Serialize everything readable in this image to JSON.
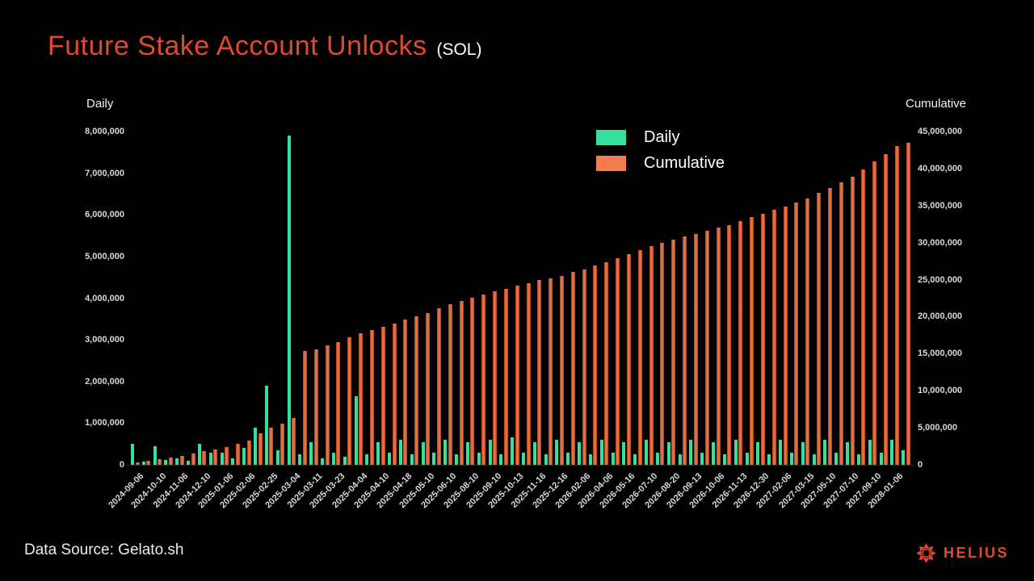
{
  "title": "Future Stake Account Unlocks",
  "title_suffix": "(SOL)",
  "colors": {
    "background": "#000000",
    "accent": "#e0492b",
    "daily_green": "#33e19b",
    "cumulative_orange": "#f47c4e",
    "cumulative_edge": "#b0451f",
    "tick_text": "#d9d9d9"
  },
  "legend": {
    "daily": {
      "label": "Daily",
      "color": "#33e19b"
    },
    "cumulative": {
      "label": "Cumulative",
      "color": "#f47c4e"
    }
  },
  "footer": {
    "source": "Data Source: Gelato.sh",
    "brand": "HELIUS"
  },
  "chart_data": {
    "type": "bar",
    "title": "Future Stake Account Unlocks (SOL)",
    "grid": false,
    "legend_position": "top-center",
    "left_axis": {
      "label": "Daily",
      "range": [
        0,
        8000000
      ],
      "ticks": [
        "8,000,000",
        "7,000,000",
        "6,000,000",
        "5,000,000",
        "4,000,000",
        "3,000,000",
        "2,000,000",
        "1,000,000",
        "0"
      ]
    },
    "right_axis": {
      "label": "Cumulative",
      "range": [
        0,
        45000000
      ],
      "ticks": [
        "45,000,000",
        "40,000,000",
        "35,000,000",
        "30,000,000",
        "25,000,000",
        "20,000,000",
        "15,000,000",
        "10,000,000",
        "5,000,000",
        "0"
      ]
    },
    "series": [
      {
        "name": "Daily",
        "axis": "left",
        "color": "#33e19b"
      },
      {
        "name": "Cumulative",
        "axis": "right",
        "color": "#f47c4e"
      }
    ],
    "points": [
      {
        "label": "2024-09-06",
        "daily": 500000,
        "cumulative": 300000
      },
      {
        "label": "",
        "daily": 80000,
        "cumulative": 600000
      },
      {
        "label": "2024-10-10",
        "daily": 450000,
        "cumulative": 800000
      },
      {
        "label": "",
        "daily": 120000,
        "cumulative": 1000000
      },
      {
        "label": "2024-11-06",
        "daily": 150000,
        "cumulative": 1200000
      },
      {
        "label": "",
        "daily": 100000,
        "cumulative": 1500000
      },
      {
        "label": "2024-12-10",
        "daily": 500000,
        "cumulative": 1800000
      },
      {
        "label": "",
        "daily": 300000,
        "cumulative": 2100000
      },
      {
        "label": "2025-01-06",
        "daily": 300000,
        "cumulative": 2400000
      },
      {
        "label": "",
        "daily": 150000,
        "cumulative": 2800000
      },
      {
        "label": "2025-02-06",
        "daily": 400000,
        "cumulative": 3300000
      },
      {
        "label": "",
        "daily": 900000,
        "cumulative": 4200000
      },
      {
        "label": "2025-02-25",
        "daily": 1900000,
        "cumulative": 5000000
      },
      {
        "label": "",
        "daily": 350000,
        "cumulative": 5600000
      },
      {
        "label": "2025-03-04",
        "daily": 7900000,
        "cumulative": 6300000
      },
      {
        "label": "",
        "daily": 250000,
        "cumulative": 15400000
      },
      {
        "label": "2025-03-11",
        "daily": 550000,
        "cumulative": 15600000
      },
      {
        "label": "",
        "daily": 150000,
        "cumulative": 16100000
      },
      {
        "label": "2025-03-23",
        "daily": 300000,
        "cumulative": 16600000
      },
      {
        "label": "",
        "daily": 200000,
        "cumulative": 17200000
      },
      {
        "label": "2025-04-04",
        "daily": 1650000,
        "cumulative": 17800000
      },
      {
        "label": "",
        "daily": 250000,
        "cumulative": 18200000
      },
      {
        "label": "2025-04-10",
        "daily": 550000,
        "cumulative": 18600000
      },
      {
        "label": "",
        "daily": 300000,
        "cumulative": 19100000
      },
      {
        "label": "2025-04-18",
        "daily": 600000,
        "cumulative": 19600000
      },
      {
        "label": "",
        "daily": 250000,
        "cumulative": 20000000
      },
      {
        "label": "2025-05-10",
        "daily": 550000,
        "cumulative": 20500000
      },
      {
        "label": "",
        "daily": 300000,
        "cumulative": 21100000
      },
      {
        "label": "2025-06-10",
        "daily": 600000,
        "cumulative": 21700000
      },
      {
        "label": "",
        "daily": 250000,
        "cumulative": 22100000
      },
      {
        "label": "2025-08-10",
        "daily": 550000,
        "cumulative": 22600000
      },
      {
        "label": "",
        "daily": 300000,
        "cumulative": 23000000
      },
      {
        "label": "2025-09-10",
        "daily": 600000,
        "cumulative": 23400000
      },
      {
        "label": "",
        "daily": 250000,
        "cumulative": 23800000
      },
      {
        "label": "2025-10-13",
        "daily": 650000,
        "cumulative": 24200000
      },
      {
        "label": "",
        "daily": 300000,
        "cumulative": 24500000
      },
      {
        "label": "2025-11-16",
        "daily": 550000,
        "cumulative": 24900000
      },
      {
        "label": "",
        "daily": 250000,
        "cumulative": 25200000
      },
      {
        "label": "2025-12-16",
        "daily": 600000,
        "cumulative": 25500000
      },
      {
        "label": "",
        "daily": 300000,
        "cumulative": 26000000
      },
      {
        "label": "2026-02-06",
        "daily": 550000,
        "cumulative": 26400000
      },
      {
        "label": "",
        "daily": 250000,
        "cumulative": 26900000
      },
      {
        "label": "2026-04-06",
        "daily": 600000,
        "cumulative": 27400000
      },
      {
        "label": "",
        "daily": 300000,
        "cumulative": 27900000
      },
      {
        "label": "2026-05-16",
        "daily": 550000,
        "cumulative": 28400000
      },
      {
        "label": "",
        "daily": 250000,
        "cumulative": 29000000
      },
      {
        "label": "2026-07-10",
        "daily": 600000,
        "cumulative": 29500000
      },
      {
        "label": "",
        "daily": 300000,
        "cumulative": 30000000
      },
      {
        "label": "2026-08-20",
        "daily": 550000,
        "cumulative": 30400000
      },
      {
        "label": "",
        "daily": 250000,
        "cumulative": 30800000
      },
      {
        "label": "2026-09-13",
        "daily": 600000,
        "cumulative": 31200000
      },
      {
        "label": "",
        "daily": 300000,
        "cumulative": 31600000
      },
      {
        "label": "2026-10-06",
        "daily": 550000,
        "cumulative": 32000000
      },
      {
        "label": "",
        "daily": 250000,
        "cumulative": 32400000
      },
      {
        "label": "2026-11-13",
        "daily": 600000,
        "cumulative": 32900000
      },
      {
        "label": "",
        "daily": 300000,
        "cumulative": 33400000
      },
      {
        "label": "2026-12-30",
        "daily": 550000,
        "cumulative": 33900000
      },
      {
        "label": "",
        "daily": 250000,
        "cumulative": 34400000
      },
      {
        "label": "2027-02-06",
        "daily": 600000,
        "cumulative": 34900000
      },
      {
        "label": "",
        "daily": 300000,
        "cumulative": 35400000
      },
      {
        "label": "2027-03-15",
        "daily": 550000,
        "cumulative": 36000000
      },
      {
        "label": "",
        "daily": 250000,
        "cumulative": 36700000
      },
      {
        "label": "2027-05-10",
        "daily": 600000,
        "cumulative": 37400000
      },
      {
        "label": "",
        "daily": 300000,
        "cumulative": 38100000
      },
      {
        "label": "2027-07-10",
        "daily": 550000,
        "cumulative": 38900000
      },
      {
        "label": "",
        "daily": 250000,
        "cumulative": 39900000
      },
      {
        "label": "2027-09-10",
        "daily": 600000,
        "cumulative": 41000000
      },
      {
        "label": "",
        "daily": 300000,
        "cumulative": 41900000
      },
      {
        "label": "2028-01-06",
        "daily": 600000,
        "cumulative": 43000000
      },
      {
        "label": "",
        "daily": 350000,
        "cumulative": 43500000
      }
    ]
  }
}
